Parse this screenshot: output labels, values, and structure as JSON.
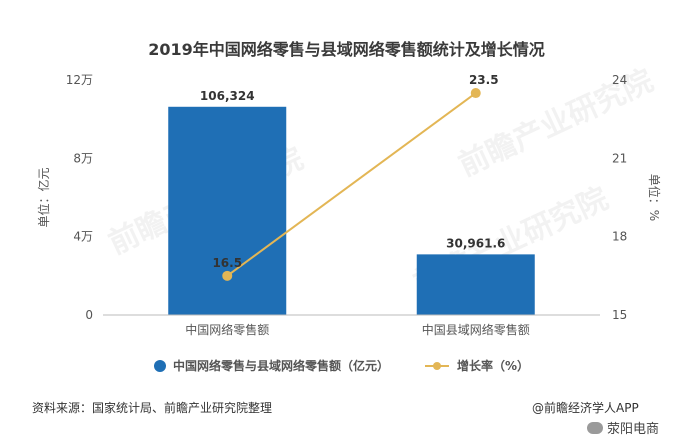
{
  "chart_data": {
    "type": "bar",
    "title": "2019年中国网络零售与县域网络零售额统计及增长情况",
    "categories": [
      "中国网络零售额",
      "中国县域网络零售额"
    ],
    "series": [
      {
        "name": "中国网络零售与县域网络零售额（亿元）",
        "type": "bar",
        "axis": "left",
        "values": [
          106324,
          30961.6
        ],
        "labels": [
          "106,324",
          "30,961.6"
        ],
        "color": "#1f6fb5"
      },
      {
        "name": "增长率（%）",
        "type": "line",
        "axis": "right",
        "values": [
          16.5,
          23.5
        ],
        "labels": [
          "16.5",
          "23.5"
        ],
        "color": "#e3b655"
      }
    ],
    "y_left": {
      "label": "单位：亿元",
      "ylim": [
        0,
        120000
      ],
      "ticks": [
        0,
        40000,
        80000,
        120000
      ],
      "tick_labels": [
        "0",
        "4万",
        "8万",
        "12万"
      ]
    },
    "y_right": {
      "label": "单位：%",
      "ylim": [
        15,
        24
      ],
      "ticks": [
        15,
        18,
        21,
        24
      ],
      "tick_labels": [
        "15",
        "18",
        "21",
        "24"
      ]
    },
    "legend_position": "bottom",
    "grid": false
  },
  "watermark": "前瞻产业研究院",
  "footer": {
    "source": "资料来源：国家统计局、前瞻产业研究院整理",
    "credit": "@前瞻经济学人APP",
    "wechat": "荥阳电商"
  }
}
